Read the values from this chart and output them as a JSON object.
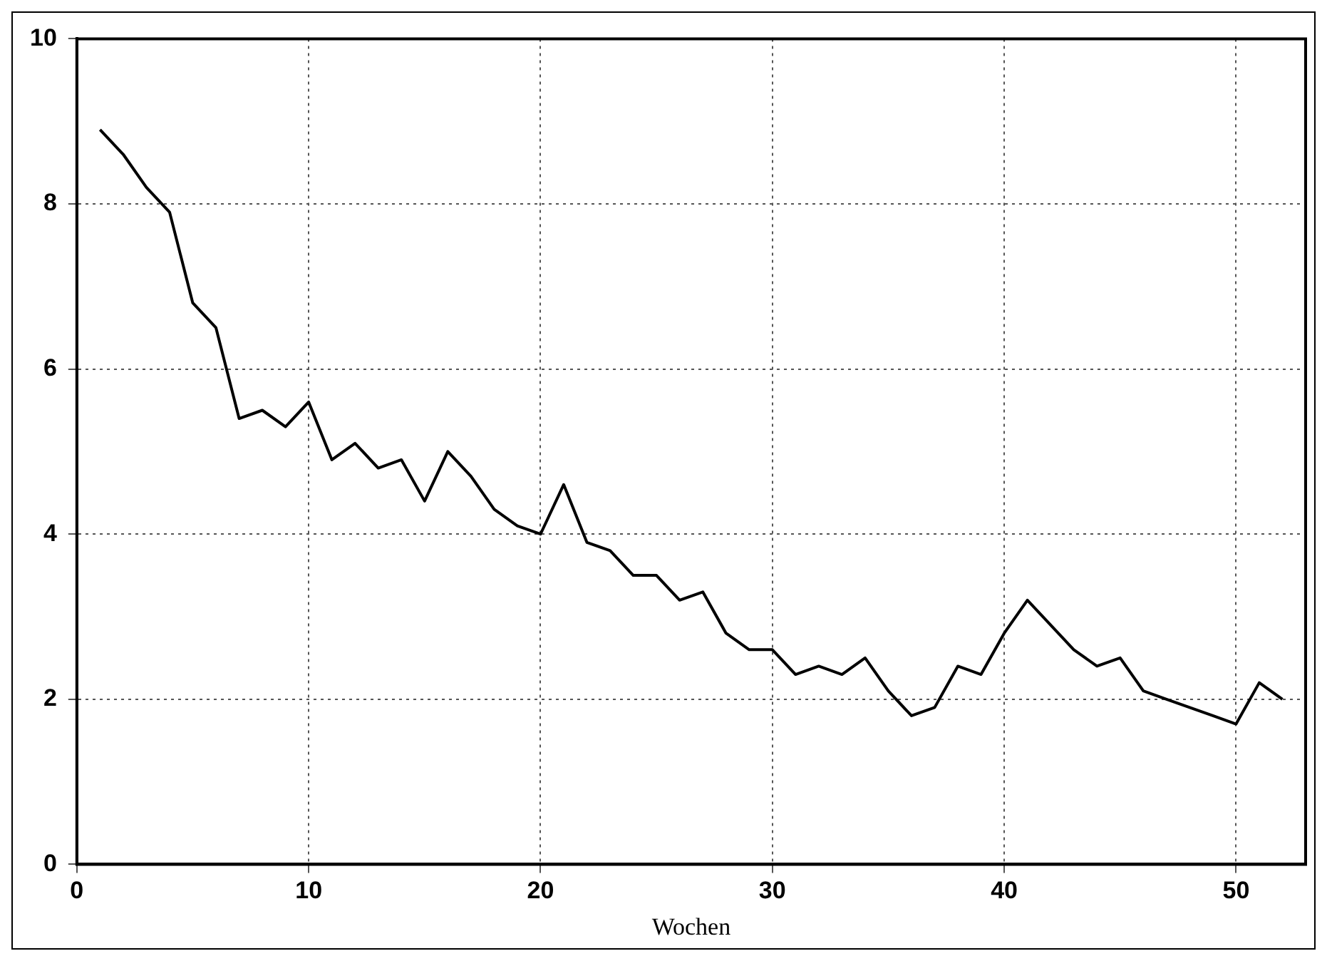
{
  "chart_data": {
    "type": "line",
    "xlabel": "Wochen",
    "x": [
      1,
      2,
      3,
      4,
      5,
      6,
      7,
      8,
      9,
      10,
      11,
      12,
      13,
      14,
      15,
      16,
      17,
      18,
      19,
      20,
      21,
      22,
      23,
      24,
      25,
      26,
      27,
      28,
      29,
      30,
      31,
      32,
      33,
      34,
      35,
      36,
      37,
      38,
      39,
      40,
      41,
      42,
      43,
      44,
      45,
      46,
      47,
      48,
      49,
      50,
      51,
      52
    ],
    "series": [
      {
        "color": "#000000",
        "values": [
          8.9,
          8.6,
          8.2,
          7.9,
          6.8,
          6.5,
          5.4,
          5.5,
          5.3,
          5.6,
          4.9,
          5.1,
          4.8,
          4.9,
          4.4,
          5.0,
          4.7,
          4.3,
          4.1,
          4.0,
          4.6,
          3.9,
          3.8,
          3.5,
          3.5,
          3.2,
          3.3,
          2.8,
          2.6,
          2.6,
          2.3,
          2.4,
          2.3,
          2.5,
          2.1,
          1.8,
          1.9,
          2.4,
          2.3,
          2.8,
          3.2,
          2.9,
          2.6,
          2.4,
          2.5,
          2.1,
          2.0,
          1.9,
          1.8,
          1.7,
          2.2,
          2.0
        ]
      }
    ],
    "xlim": [
      0,
      53
    ],
    "xticks": [
      0,
      10,
      20,
      30,
      40,
      50
    ],
    "ylim": [
      0,
      10
    ],
    "yticks": [
      0,
      2,
      4,
      6,
      8,
      10
    ],
    "grid": true,
    "legend": false,
    "marker": "none",
    "line_style": "solid"
  }
}
